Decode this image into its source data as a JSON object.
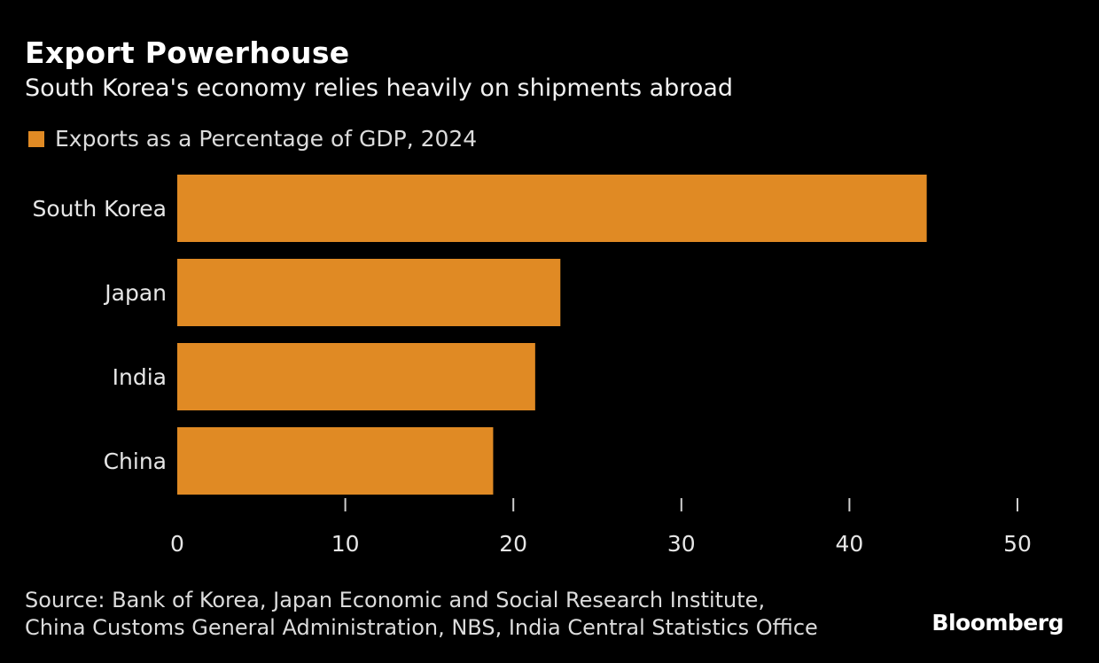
{
  "chart_data": {
    "type": "bar",
    "orientation": "horizontal",
    "title": "Export Powerhouse",
    "subtitle": "South Korea's economy relies heavily on shipments abroad",
    "legend": [
      {
        "label": "Exports as a Percentage of GDP, 2024",
        "color": "#e08a24"
      }
    ],
    "legend_position": "top-left",
    "categories": [
      "South Korea",
      "Japan",
      "India",
      "China"
    ],
    "series": [
      {
        "name": "Exports as a Percentage of GDP, 2024",
        "values": [
          44.6,
          22.8,
          21.3,
          18.8
        ],
        "color": "#e08a24"
      }
    ],
    "xlim": [
      0,
      50
    ],
    "xticks": [
      0,
      10,
      20,
      30,
      40,
      50
    ],
    "xtick_labels": [
      "0",
      "10",
      "20",
      "30",
      "40",
      "50"
    ],
    "xlabel": "",
    "ylabel": "",
    "grid": false
  },
  "footer": {
    "source_line1": "Source: Bank of Korea, Japan Economic and Social Research Institute,",
    "source_line2": "China Customs General Administration, NBS, India Central Statistics Office",
    "brand": "Bloomberg"
  }
}
